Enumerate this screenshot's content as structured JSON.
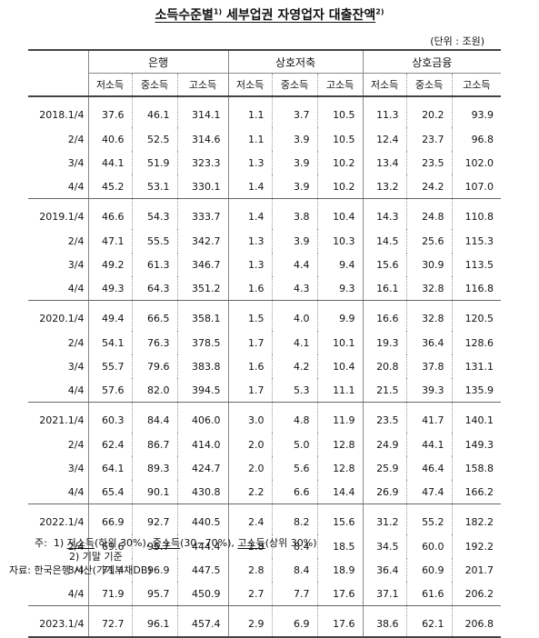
{
  "title": {
    "main": "소득수준별",
    "sup1": "1)",
    "rest": " 세부업권 자영업자 대출잔액",
    "sup2": "2)"
  },
  "unit": "(단위 : 조원)",
  "groups": [
    "은행",
    "상호저축",
    "상호금융"
  ],
  "subheaders": [
    "저소득",
    "중소득",
    "고소득"
  ],
  "rows": [
    {
      "period": "2018.1/4",
      "v": [
        "37.6",
        "46.1",
        "314.1",
        "1.1",
        "3.7",
        "10.5",
        "11.3",
        "20.2",
        "93.9"
      ]
    },
    {
      "period": "2/4",
      "v": [
        "40.6",
        "52.5",
        "314.6",
        "1.1",
        "3.9",
        "10.5",
        "12.4",
        "23.7",
        "96.8"
      ]
    },
    {
      "period": "3/4",
      "v": [
        "44.1",
        "51.9",
        "323.3",
        "1.3",
        "3.9",
        "10.2",
        "13.4",
        "23.5",
        "102.0"
      ]
    },
    {
      "period": "4/4",
      "v": [
        "45.2",
        "53.1",
        "330.1",
        "1.4",
        "3.9",
        "10.2",
        "13.2",
        "24.2",
        "107.0"
      ]
    },
    {
      "period": "2019.1/4",
      "v": [
        "46.6",
        "54.3",
        "333.7",
        "1.4",
        "3.8",
        "10.4",
        "14.3",
        "24.8",
        "110.8"
      ]
    },
    {
      "period": "2/4",
      "v": [
        "47.1",
        "55.5",
        "342.7",
        "1.3",
        "3.9",
        "10.3",
        "14.5",
        "25.6",
        "115.3"
      ]
    },
    {
      "period": "3/4",
      "v": [
        "49.2",
        "61.3",
        "346.7",
        "1.3",
        "4.4",
        "9.4",
        "15.6",
        "30.9",
        "113.5"
      ]
    },
    {
      "period": "4/4",
      "v": [
        "49.3",
        "64.3",
        "351.2",
        "1.6",
        "4.3",
        "9.3",
        "16.1",
        "32.8",
        "116.8"
      ]
    },
    {
      "period": "2020.1/4",
      "v": [
        "49.4",
        "66.5",
        "358.1",
        "1.5",
        "4.0",
        "9.9",
        "16.6",
        "32.8",
        "120.5"
      ]
    },
    {
      "period": "2/4",
      "v": [
        "54.1",
        "76.3",
        "378.5",
        "1.7",
        "4.1",
        "10.1",
        "19.3",
        "36.4",
        "128.6"
      ]
    },
    {
      "period": "3/4",
      "v": [
        "55.7",
        "79.6",
        "383.8",
        "1.6",
        "4.2",
        "10.4",
        "20.8",
        "37.8",
        "131.1"
      ]
    },
    {
      "period": "4/4",
      "v": [
        "57.6",
        "82.0",
        "394.5",
        "1.7",
        "5.3",
        "11.1",
        "21.5",
        "39.3",
        "135.9"
      ]
    },
    {
      "period": "2021.1/4",
      "v": [
        "60.3",
        "84.4",
        "406.0",
        "3.0",
        "4.8",
        "11.9",
        "23.5",
        "41.7",
        "140.1"
      ]
    },
    {
      "period": "2/4",
      "v": [
        "62.4",
        "86.7",
        "414.0",
        "2.0",
        "5.0",
        "12.8",
        "24.9",
        "44.1",
        "149.3"
      ]
    },
    {
      "period": "3/4",
      "v": [
        "64.1",
        "89.3",
        "424.7",
        "2.0",
        "5.6",
        "12.8",
        "25.9",
        "46.4",
        "158.8"
      ]
    },
    {
      "period": "4/4",
      "v": [
        "65.4",
        "90.1",
        "430.8",
        "2.2",
        "6.6",
        "14.4",
        "26.9",
        "47.4",
        "166.2"
      ]
    },
    {
      "period": "2022.1/4",
      "v": [
        "66.9",
        "92.7",
        "440.5",
        "2.4",
        "8.2",
        "15.6",
        "31.2",
        "55.2",
        "182.2"
      ]
    },
    {
      "period": "2/4",
      "v": [
        "69.6",
        "95.7",
        "444.4",
        "2.8",
        "8.4",
        "18.5",
        "34.5",
        "60.0",
        "192.2"
      ]
    },
    {
      "period": "3/4",
      "v": [
        "71.4",
        "96.9",
        "447.5",
        "2.8",
        "8.4",
        "18.9",
        "36.4",
        "60.9",
        "201.7"
      ]
    },
    {
      "period": "4/4",
      "v": [
        "71.9",
        "95.7",
        "450.9",
        "2.7",
        "7.7",
        "17.6",
        "37.1",
        "61.6",
        "206.2"
      ]
    },
    {
      "period": "2023.1/4",
      "v": [
        "72.7",
        "96.1",
        "457.4",
        "2.9",
        "6.9",
        "17.6",
        "38.6",
        "62.1",
        "206.8"
      ]
    }
  ],
  "notes": {
    "label": "주:",
    "n1_num": "1)",
    "n1_low": "저소득",
    "n1_low_range": "(하위 30%), ",
    "n1_mid": "중소득",
    "n1_mid_range": "(30~70%), ",
    "n1_high": "고소득",
    "n1_high_range": "(상위 30%)",
    "n2": "2) 기말 기준",
    "source": "자료: 한국은행 시산(가계부채DB)"
  }
}
